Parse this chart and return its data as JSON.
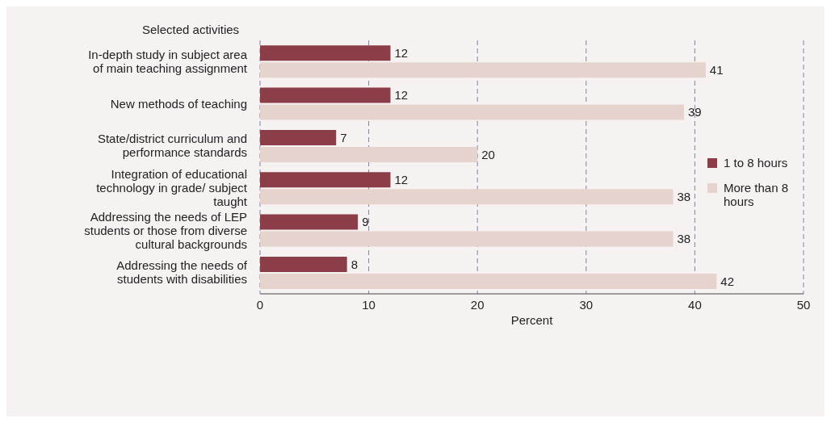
{
  "chart_data": {
    "type": "bar",
    "orientation": "horizontal",
    "ylabel": "Selected activities",
    "xlabel": "Percent",
    "categories": [
      "In-depth study in subject area of main teaching assignment",
      "New methods of teaching",
      "State/district curriculum and performance standards",
      "Integration of educational technology in grade/ subject taught",
      "Addressing the needs of LEP students or those from diverse cultural backgrounds",
      "Addressing the needs of students with disabilities"
    ],
    "series": [
      {
        "name": "1 to 8 hours",
        "color": "#8b3d48",
        "values": [
          12,
          12,
          7,
          12,
          9,
          8
        ]
      },
      {
        "name": "More than 8 hours",
        "color": "#e6d3ce",
        "values": [
          41,
          39,
          20,
          38,
          38,
          42
        ]
      }
    ],
    "xlim": [
      0,
      50
    ],
    "xticks": [
      0,
      10,
      20,
      30,
      40,
      50
    ],
    "grid": "x",
    "legend": "right",
    "data_labels": true
  }
}
